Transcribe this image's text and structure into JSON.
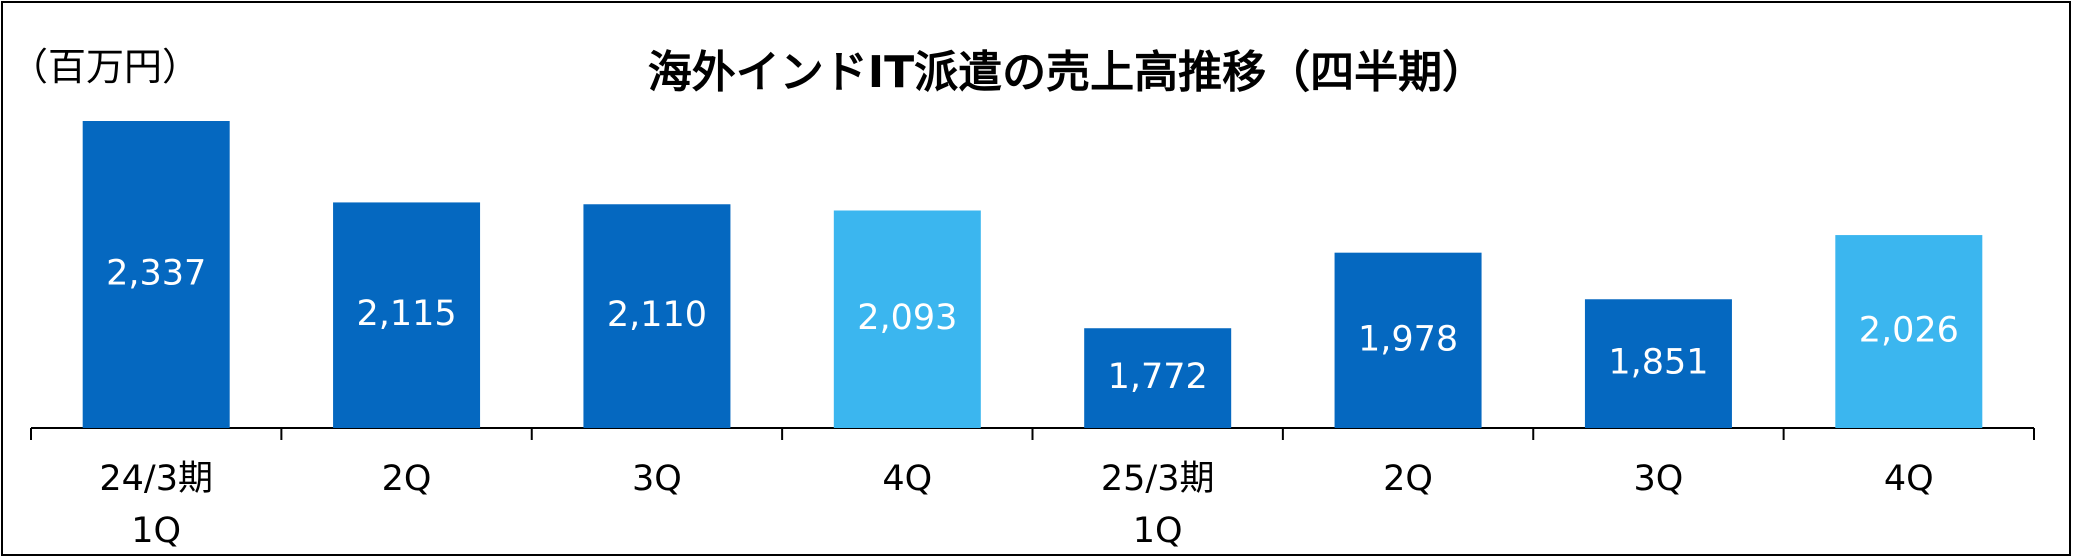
{
  "chart_data": {
    "type": "bar",
    "title": "海外インドIT派遣の売上高推移（四半期）",
    "unit_label": "（百万円）",
    "categories": [
      [
        "24/3期",
        "1Q"
      ],
      [
        "2Q"
      ],
      [
        "3Q"
      ],
      [
        "4Q"
      ],
      [
        "25/3期",
        "1Q"
      ],
      [
        "2Q"
      ],
      [
        "3Q"
      ],
      [
        "4Q"
      ]
    ],
    "values": [
      2337,
      2115,
      2110,
      2093,
      1772,
      1978,
      1851,
      2026
    ],
    "value_labels": [
      "2,337",
      "2,115",
      "2,110",
      "2,093",
      "1,772",
      "1,978",
      "1,851",
      "2,026"
    ],
    "highlight": [
      false,
      false,
      false,
      true,
      false,
      false,
      false,
      true
    ],
    "ylim": [
      0,
      2337
    ],
    "grid": false,
    "legend": "none",
    "colors": {
      "bar": "#0568C0",
      "highlight": "#3BB6EF",
      "axis": "#000000"
    }
  }
}
